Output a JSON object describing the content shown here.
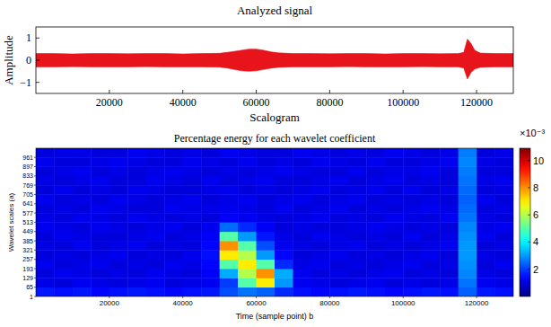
{
  "chart_data": [
    {
      "type": "area",
      "title": "Analyzed signal",
      "y_label": "Amplitude",
      "color": "#e8141c",
      "x": [
        0,
        5000,
        10000,
        15000,
        20000,
        25000,
        30000,
        35000,
        40000,
        45000,
        50000,
        52000,
        54000,
        56000,
        58000,
        60000,
        62000,
        64000,
        66000,
        70000,
        75000,
        80000,
        85000,
        90000,
        95000,
        100000,
        105000,
        110000,
        115000,
        116500,
        117500,
        118500,
        119500,
        121000,
        125000,
        130000
      ],
      "values": [
        0.3,
        0.3,
        0.28,
        0.3,
        0.3,
        0.29,
        0.3,
        0.3,
        0.28,
        0.3,
        0.31,
        0.35,
        0.4,
        0.45,
        0.5,
        0.5,
        0.45,
        0.38,
        0.33,
        0.3,
        0.3,
        0.29,
        0.3,
        0.3,
        0.28,
        0.3,
        0.3,
        0.29,
        0.3,
        0.35,
        0.95,
        0.75,
        0.45,
        0.32,
        0.3,
        0.3
      ],
      "lower_values": [
        -0.3,
        -0.3,
        -0.29,
        -0.3,
        -0.3,
        -0.3,
        -0.29,
        -0.3,
        -0.3,
        -0.3,
        -0.31,
        -0.35,
        -0.42,
        -0.48,
        -0.5,
        -0.48,
        -0.42,
        -0.36,
        -0.32,
        -0.3,
        -0.3,
        -0.3,
        -0.29,
        -0.3,
        -0.3,
        -0.3,
        -0.29,
        -0.3,
        -0.3,
        -0.35,
        -0.85,
        -0.55,
        -0.4,
        -0.32,
        -0.3,
        -0.3
      ],
      "xlim": [
        0,
        130000
      ],
      "xticks": [
        20000,
        40000,
        60000,
        80000,
        100000,
        120000
      ],
      "ylim": [
        -1.5,
        1.5
      ],
      "yticks": [
        {
          "value": -1,
          "label": "−1"
        },
        0,
        1
      ]
    },
    {
      "type": "heatmap",
      "title": "Scalogram",
      "subtitle": "Percentage energy for each wavelet coefficient",
      "x_label": "Time (sample point) b",
      "y_label": "Wavelet scales (a)",
      "x_bins": [
        0,
        5000,
        10000,
        15000,
        20000,
        25000,
        30000,
        35000,
        40000,
        45000,
        50000,
        55000,
        60000,
        65000,
        70000,
        75000,
        80000,
        85000,
        90000,
        95000,
        100000,
        105000,
        110000,
        115000,
        120000,
        125000,
        130000
      ],
      "y_bins": [
        1,
        65,
        129,
        193,
        257,
        321,
        385,
        449,
        513,
        577,
        641,
        705,
        769,
        833,
        897,
        961,
        1024
      ],
      "cells": [
        [
          1.6,
          1.5,
          1.6,
          1.4,
          1.5,
          1.6,
          1.5,
          1.4,
          1.5,
          1.6,
          2.2,
          2.6,
          2.4,
          1.8,
          1.5,
          1.4,
          1.5,
          1.6,
          1.5,
          1.4,
          1.5,
          1.6,
          1.5,
          2.4,
          1.6,
          1.5
        ],
        [
          1.1,
          1.0,
          1.2,
          1.1,
          1.0,
          1.1,
          1.2,
          1.0,
          1.1,
          1.2,
          2.0,
          5.0,
          7.0,
          3.0,
          1.2,
          1.1,
          1.0,
          1.1,
          1.2,
          1.0,
          1.1,
          1.0,
          1.1,
          2.6,
          1.2,
          1.1
        ],
        [
          1.0,
          1.2,
          1.1,
          1.0,
          1.1,
          1.0,
          1.2,
          1.1,
          1.0,
          1.3,
          3.2,
          6.0,
          8.0,
          3.2,
          1.2,
          1.0,
          1.1,
          1.0,
          1.1,
          1.2,
          1.0,
          1.1,
          1.0,
          2.8,
          1.1,
          1.0
        ],
        [
          1.2,
          1.0,
          1.1,
          1.2,
          1.0,
          1.1,
          1.0,
          1.2,
          1.1,
          1.4,
          5.0,
          7.0,
          5.0,
          1.8,
          1.1,
          1.2,
          1.0,
          1.1,
          1.0,
          1.1,
          1.2,
          1.0,
          1.1,
          2.9,
          1.0,
          1.2
        ],
        [
          1.0,
          1.1,
          1.0,
          1.1,
          1.2,
          1.0,
          1.1,
          1.0,
          1.2,
          1.5,
          7.0,
          6.0,
          3.0,
          1.4,
          1.0,
          1.1,
          1.2,
          1.0,
          1.1,
          1.0,
          1.1,
          1.2,
          1.0,
          3.0,
          1.1,
          1.0
        ],
        [
          1.1,
          1.0,
          1.2,
          1.0,
          1.1,
          1.2,
          1.0,
          1.1,
          1.0,
          1.4,
          8.0,
          5.0,
          2.2,
          1.2,
          1.1,
          1.0,
          1.1,
          1.2,
          1.0,
          1.1,
          1.0,
          1.1,
          1.2,
          3.0,
          1.0,
          1.1
        ],
        [
          1.0,
          1.2,
          1.1,
          1.0,
          1.0,
          1.1,
          1.2,
          1.0,
          1.1,
          1.3,
          5.0,
          3.0,
          1.6,
          1.1,
          1.0,
          1.2,
          1.1,
          1.0,
          1.1,
          1.0,
          1.2,
          1.0,
          1.1,
          2.9,
          1.2,
          1.0
        ],
        [
          1.2,
          1.1,
          1.0,
          1.2,
          1.1,
          1.0,
          1.1,
          1.2,
          1.0,
          1.2,
          2.5,
          1.8,
          1.3,
          1.0,
          1.1,
          1.0,
          1.0,
          1.1,
          1.2,
          1.1,
          1.0,
          1.1,
          1.0,
          2.8,
          1.1,
          1.2
        ],
        [
          1.1,
          1.0,
          1.2,
          1.1,
          1.0,
          1.2,
          1.1,
          1.0,
          1.1,
          1.0,
          1.3,
          1.2,
          1.1,
          1.0,
          1.1,
          1.2,
          1.0,
          1.1,
          1.0,
          1.2,
          1.1,
          1.0,
          1.2,
          2.6,
          1.1,
          1.0
        ],
        [
          1.0,
          1.1,
          1.0,
          1.2,
          1.1,
          1.0,
          1.0,
          1.2,
          1.1,
          1.1,
          1.2,
          1.1,
          1.0,
          1.2,
          1.0,
          1.1,
          1.2,
          1.0,
          1.1,
          1.0,
          1.1,
          1.2,
          1.1,
          2.5,
          1.0,
          1.1
        ],
        [
          1.2,
          1.0,
          1.1,
          1.0,
          1.2,
          1.1,
          1.0,
          1.1,
          1.2,
          1.0,
          1.1,
          1.2,
          1.0,
          1.1,
          1.2,
          1.0,
          1.1,
          1.2,
          1.0,
          1.1,
          1.0,
          1.1,
          1.0,
          2.4,
          1.2,
          1.0
        ],
        [
          1.0,
          1.2,
          1.0,
          1.1,
          1.0,
          1.2,
          1.1,
          1.0,
          1.0,
          1.1,
          1.2,
          1.0,
          1.1,
          1.0,
          1.1,
          1.2,
          1.0,
          1.1,
          1.2,
          1.0,
          1.2,
          1.0,
          1.1,
          2.5,
          1.0,
          1.1
        ],
        [
          1.1,
          1.0,
          1.1,
          1.2,
          1.0,
          1.0,
          1.2,
          1.1,
          1.0,
          1.2,
          1.0,
          1.1,
          1.2,
          1.0,
          1.0,
          1.1,
          1.2,
          1.0,
          1.1,
          1.2,
          1.0,
          1.1,
          1.0,
          2.6,
          1.1,
          1.2
        ],
        [
          1.0,
          1.1,
          1.2,
          1.0,
          1.1,
          1.0,
          1.1,
          1.2,
          1.1,
          1.0,
          1.1,
          1.0,
          1.1,
          1.2,
          1.1,
          1.0,
          1.0,
          1.2,
          1.0,
          1.1,
          1.1,
          1.2,
          1.0,
          2.7,
          1.0,
          1.0
        ],
        [
          1.2,
          1.0,
          1.0,
          1.1,
          1.2,
          1.1,
          1.0,
          1.0,
          1.2,
          1.1,
          1.0,
          1.2,
          1.0,
          1.1,
          1.0,
          1.2,
          1.1,
          1.0,
          1.2,
          1.0,
          1.0,
          1.1,
          1.2,
          2.8,
          1.1,
          1.0
        ],
        [
          1.0,
          1.1,
          1.1,
          1.0,
          1.0,
          1.2,
          1.1,
          1.0,
          1.1,
          1.0,
          1.2,
          1.1,
          1.0,
          1.0,
          1.2,
          1.1,
          1.0,
          1.1,
          1.0,
          1.2,
          1.1,
          1.0,
          1.1,
          2.7,
          1.0,
          1.1
        ]
      ],
      "xlim": [
        0,
        130000
      ],
      "xticks": [
        20000,
        40000,
        60000,
        80000,
        100000,
        120000
      ],
      "ylim": [
        1,
        1024
      ],
      "yticks": [
        1,
        65,
        129,
        193,
        257,
        321,
        385,
        449,
        513,
        577,
        641,
        705,
        769,
        833,
        897,
        961
      ],
      "color_range": [
        0,
        10.9
      ],
      "color_ticks": [
        2,
        4,
        6,
        8,
        10
      ],
      "color_label": "×10⁻³"
    }
  ]
}
